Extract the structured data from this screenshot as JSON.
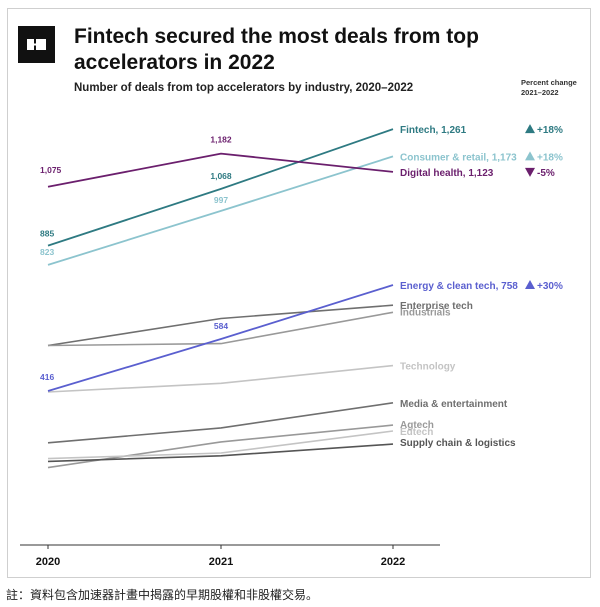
{
  "title": "Fintech secured the most deals from top accelerators in 2022",
  "subtitle": "Number of deals from top accelerators by industry, 2020–2022",
  "pct_header_line1": "Percent change",
  "pct_header_line2": "2021–2022",
  "footnote": "註：資料包含加速器計畫中揭露的早期股權和非股權交易。",
  "colors": {
    "fintech": "#2e7a82",
    "consumer": "#8cc4ce",
    "digital_health": "#6b1f6d",
    "energy": "#5a5fcf",
    "gray_dark": "#6f6f6f",
    "gray_mid": "#999999",
    "gray_light": "#c4c4c4"
  },
  "chart_data": {
    "type": "line",
    "title": "Fintech secured the most deals from top accelerators in 2022",
    "subtitle": "Number of deals from top accelerators by industry, 2020–2022",
    "categories": [
      "2020",
      "2021",
      "2022"
    ],
    "ylim": [
      0,
      1300
    ],
    "grid": false,
    "legend": "direct labels at right end",
    "series": [
      {
        "name": "Fintech",
        "end_label": "Fintech, 1,261",
        "values": [
          885,
          1068,
          1261
        ],
        "point_labels": [
          "885",
          "1,068",
          null
        ],
        "color": "#2e7a82",
        "pct_change": "+18%",
        "arrow": "up",
        "width": 1.8
      },
      {
        "name": "Consumer & retail",
        "end_label": "Consumer & retail, 1,173",
        "values": [
          823,
          997,
          1173
        ],
        "point_labels": [
          "823",
          "997",
          null
        ],
        "color": "#8cc4ce",
        "pct_change": "+18%",
        "arrow": "up",
        "width": 1.8
      },
      {
        "name": "Digital health",
        "end_label": "Digital health, 1,123",
        "values": [
          1075,
          1182,
          1123
        ],
        "point_labels": [
          "1,075",
          "1,182",
          null
        ],
        "color": "#6b1f6d",
        "pct_change": "-5%",
        "arrow": "down",
        "width": 1.8
      },
      {
        "name": "Energy & clean tech",
        "end_label": "Energy & clean tech, 758",
        "values": [
          416,
          584,
          758
        ],
        "point_labels": [
          "416",
          "584",
          null
        ],
        "color": "#5a5fcf",
        "pct_change": "+30%",
        "arrow": "up",
        "width": 1.8
      },
      {
        "name": "Enterprise tech",
        "end_label": "Enterprise tech",
        "values": [
          563,
          650,
          693
        ],
        "color": "#6f6f6f",
        "width": 1.6
      },
      {
        "name": "Industrials",
        "end_label": "Industrials",
        "values": [
          563,
          569,
          670
        ],
        "color": "#999999",
        "width": 1.6
      },
      {
        "name": "Technology",
        "end_label": "Technology",
        "values": [
          413,
          441,
          498
        ],
        "color": "#c4c4c4",
        "width": 1.6
      },
      {
        "name": "Media & entertainment",
        "end_label": "Media & entertainment",
        "values": [
          249,
          297,
          378
        ],
        "color": "#6f6f6f",
        "width": 1.6
      },
      {
        "name": "Agtech",
        "end_label": "Agtech",
        "values": [
          169,
          252,
          306
        ],
        "color": "#999999",
        "width": 1.6
      },
      {
        "name": "Edtech",
        "end_label": "Edtech",
        "values": [
          198,
          216,
          287
        ],
        "color": "#c4c4c4",
        "width": 1.6
      },
      {
        "name": "Supply chain & logistics",
        "end_label": "Supply chain & logistics",
        "values": [
          189,
          207,
          245
        ],
        "color": "#555555",
        "width": 1.6
      }
    ]
  }
}
